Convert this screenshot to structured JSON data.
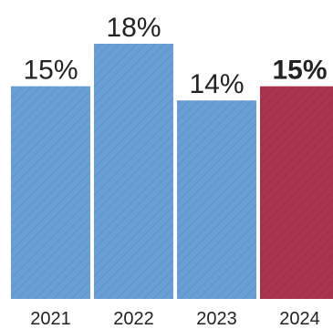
{
  "chart_data": {
    "type": "bar",
    "categories": [
      "2021",
      "2022",
      "2023",
      "2024"
    ],
    "values": [
      15,
      18,
      14,
      15
    ],
    "data_labels": [
      "15%",
      "18%",
      "14%",
      "15%"
    ],
    "highlight_index": 3,
    "colors": {
      "bar": "#6a9fd6",
      "highlight": "#a8344e",
      "hatch": "#4f80b8",
      "hatch_highlight": "#8e2a40",
      "text": "#222222"
    },
    "ylim": [
      0,
      18
    ],
    "grid": false,
    "legend": "none",
    "title": "",
    "xlabel": "",
    "ylabel": ""
  }
}
